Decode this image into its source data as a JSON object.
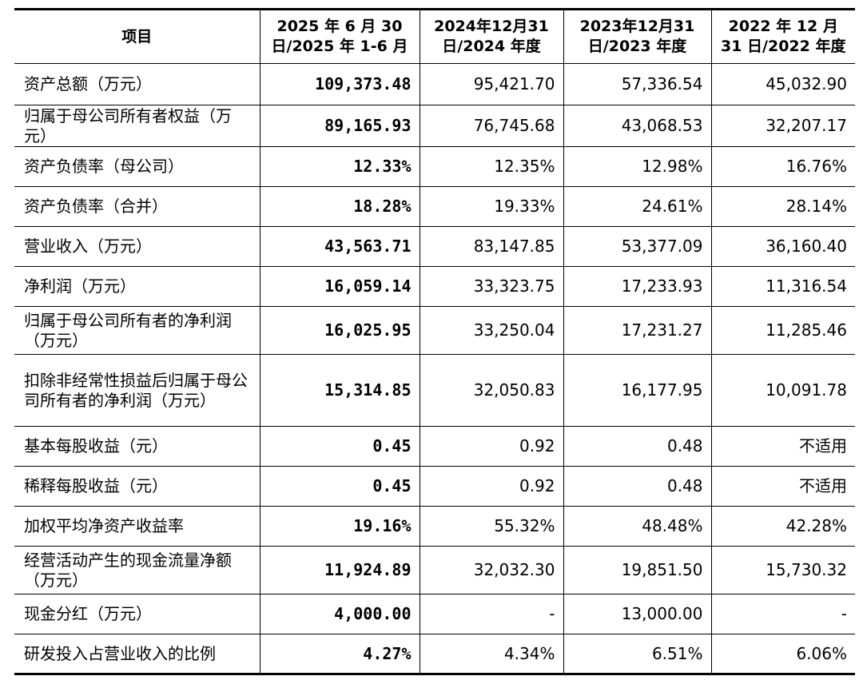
{
  "table": {
    "header": [
      "项目",
      "2025 年 6 月 30 日/2025 年 1-6 月",
      "2024年12月31日/2024 年度",
      "2023年12月31日/2023 年度",
      "2022 年 12 月 31 日/2022 年度"
    ],
    "rows": [
      [
        "资产总额（万元）",
        "109,373.48",
        "95,421.70",
        "57,336.54",
        "45,032.90"
      ],
      [
        "归属于母公司所有者权益（万元）",
        "89,165.93",
        "76,745.68",
        "43,068.53",
        "32,207.17"
      ],
      [
        "资产负债率（母公司）",
        "12.33%",
        "12.35%",
        "12.98%",
        "16.76%"
      ],
      [
        "资产负债率（合并）",
        "18.28%",
        "19.33%",
        "24.61%",
        "28.14%"
      ],
      [
        "营业收入（万元）",
        "43,563.71",
        "83,147.85",
        "53,377.09",
        "36,160.40"
      ],
      [
        "净利润（万元）",
        "16,059.14",
        "33,323.75",
        "17,233.93",
        "11,316.54"
      ],
      [
        "归属于母公司所有者的净利润（万元）",
        "16,025.95",
        "33,250.04",
        "17,231.27",
        "11,285.46"
      ],
      [
        "扣除非经常性损益后归属于母公司所有者的净利润（万元）",
        "15,314.85",
        "32,050.83",
        "16,177.95",
        "10,091.78"
      ],
      [
        "基本每股收益（元）",
        "0.45",
        "0.92",
        "0.48",
        "不适用"
      ],
      [
        "稀释每股收益（元）",
        "0.45",
        "0.92",
        "0.48",
        "不适用"
      ],
      [
        "加权平均净资产收益率",
        "19.16%",
        "55.32%",
        "48.48%",
        "42.28%"
      ],
      [
        "经营活动产生的现金流量净额（万元）",
        "11,924.89",
        "32,032.30",
        "19,851.50",
        "15,730.32"
      ],
      [
        "现金分红（万元）",
        "4,000.00",
        "-",
        "13,000.00",
        "-"
      ],
      [
        "研发投入占营业收入的比例",
        "4.27%",
        "4.34%",
        "6.51%",
        "6.06%"
      ]
    ]
  }
}
